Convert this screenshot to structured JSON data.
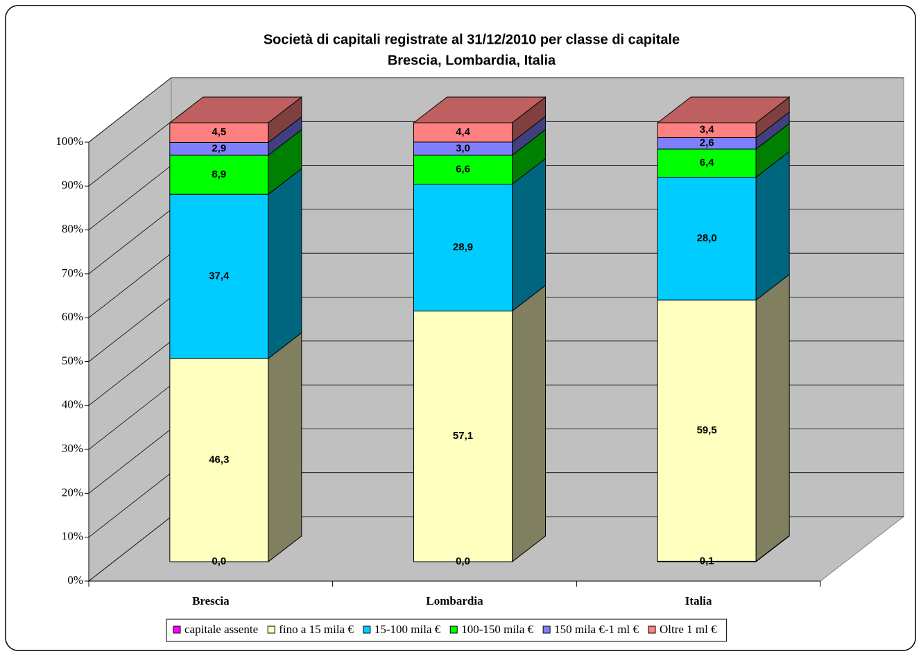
{
  "chart_data": {
    "type": "bar3d_stacked",
    "title": "Società di capitali registrate al 31/12/2010 per classe di capitale",
    "subtitle": "Brescia, Lombardia, Italia",
    "categories": [
      "Brescia",
      "Lombardia",
      "Italia"
    ],
    "series": [
      {
        "name": "capitale assente",
        "color": "#ff00ff",
        "values": [
          0.0,
          0.0,
          0.1
        ],
        "value_labels": [
          "0,0",
          "0,0",
          "0,1"
        ]
      },
      {
        "name": "fino a 15 mila €",
        "color": "#ffffc0",
        "values": [
          46.3,
          57.1,
          59.5
        ],
        "value_labels": [
          "46,3",
          "57,1",
          "59,5"
        ]
      },
      {
        "name": "15-100 mila €",
        "color": "#00ccff",
        "values": [
          37.4,
          28.9,
          28.0
        ],
        "value_labels": [
          "37,4",
          "28,9",
          "28,0"
        ]
      },
      {
        "name": "100-150 mila €",
        "color": "#00ff00",
        "values": [
          8.9,
          6.6,
          6.4
        ],
        "value_labels": [
          "8,9",
          "6,6",
          "6,4"
        ]
      },
      {
        "name": "150 mila €-1 ml €",
        "color": "#8080ff",
        "values": [
          2.9,
          3.0,
          2.6
        ],
        "value_labels": [
          "2,9",
          "3,0",
          "2,6"
        ]
      },
      {
        "name": "Oltre 1 ml €",
        "color": "#ff8080",
        "values": [
          4.5,
          4.4,
          3.4
        ],
        "value_labels": [
          "4,5",
          "4,4",
          "3,4"
        ]
      }
    ],
    "ylim": [
      0,
      100
    ],
    "yticks": [
      {
        "value": 0,
        "label": "0%"
      },
      {
        "value": 10,
        "label": "10%"
      },
      {
        "value": 20,
        "label": "20%"
      },
      {
        "value": 30,
        "label": "30%"
      },
      {
        "value": 40,
        "label": "40%"
      },
      {
        "value": 50,
        "label": "50%"
      },
      {
        "value": 60,
        "label": "60%"
      },
      {
        "value": 70,
        "label": "70%"
      },
      {
        "value": 80,
        "label": "80%"
      },
      {
        "value": 90,
        "label": "90%"
      },
      {
        "value": 100,
        "label": "100%"
      }
    ],
    "grid": true,
    "legend": "bottom"
  }
}
